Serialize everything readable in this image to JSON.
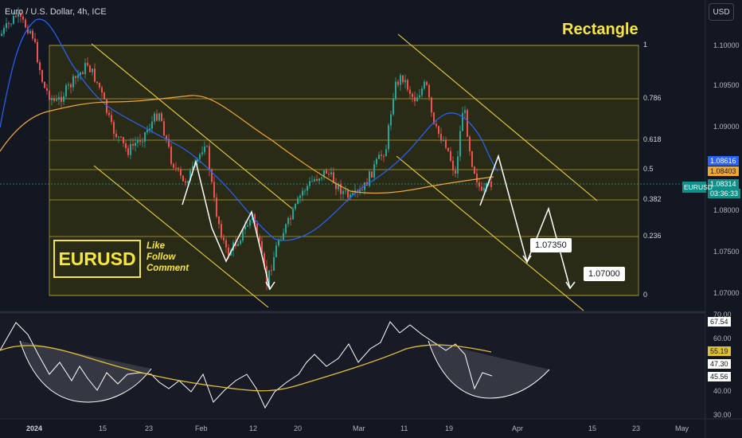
{
  "header": {
    "symbol_line": "Euro / U.S. Dollar, 4h, ICE"
  },
  "currency_button": "USD",
  "titles": {
    "rectangle": "Rectangle",
    "symbol_box": "EURUSD"
  },
  "social": {
    "line1": "Like",
    "line2": "Follow",
    "line3": "Comment"
  },
  "targets": {
    "first": "1.07350",
    "second": "1.07000"
  },
  "fib_levels": [
    "1",
    "0.786",
    "0.618",
    "0.5",
    "0.382",
    "0.236",
    "0"
  ],
  "price_axis": [
    "1.10000",
    "1.09500",
    "1.09000",
    "1.08000",
    "1.07500",
    "1.07000"
  ],
  "price_tags": {
    "blue": "1.08616",
    "orange": "1.08403",
    "current": "1.08314",
    "countdown": "03:36:33",
    "side_label": "EURUSD"
  },
  "rsi_axis": {
    "top": "70.00",
    "t60": "60.00",
    "t40": "40.00",
    "t30": "30.00"
  },
  "rsi_tags": {
    "white": "67.54",
    "yellow": "55.19",
    "grey": "47.30",
    "value": "45.56"
  },
  "time_axis": [
    "2024",
    "15",
    "23",
    "Feb",
    "12",
    "20",
    "Mar",
    "11",
    "19",
    "Apr",
    "15",
    "23",
    "May"
  ],
  "colors": {
    "background": "#131722",
    "bull": "#26a69a",
    "bear": "#ef5350",
    "yellow": "#f7e63f",
    "blue_ma": "#2962ff",
    "orange_ma": "#f0a830"
  }
}
